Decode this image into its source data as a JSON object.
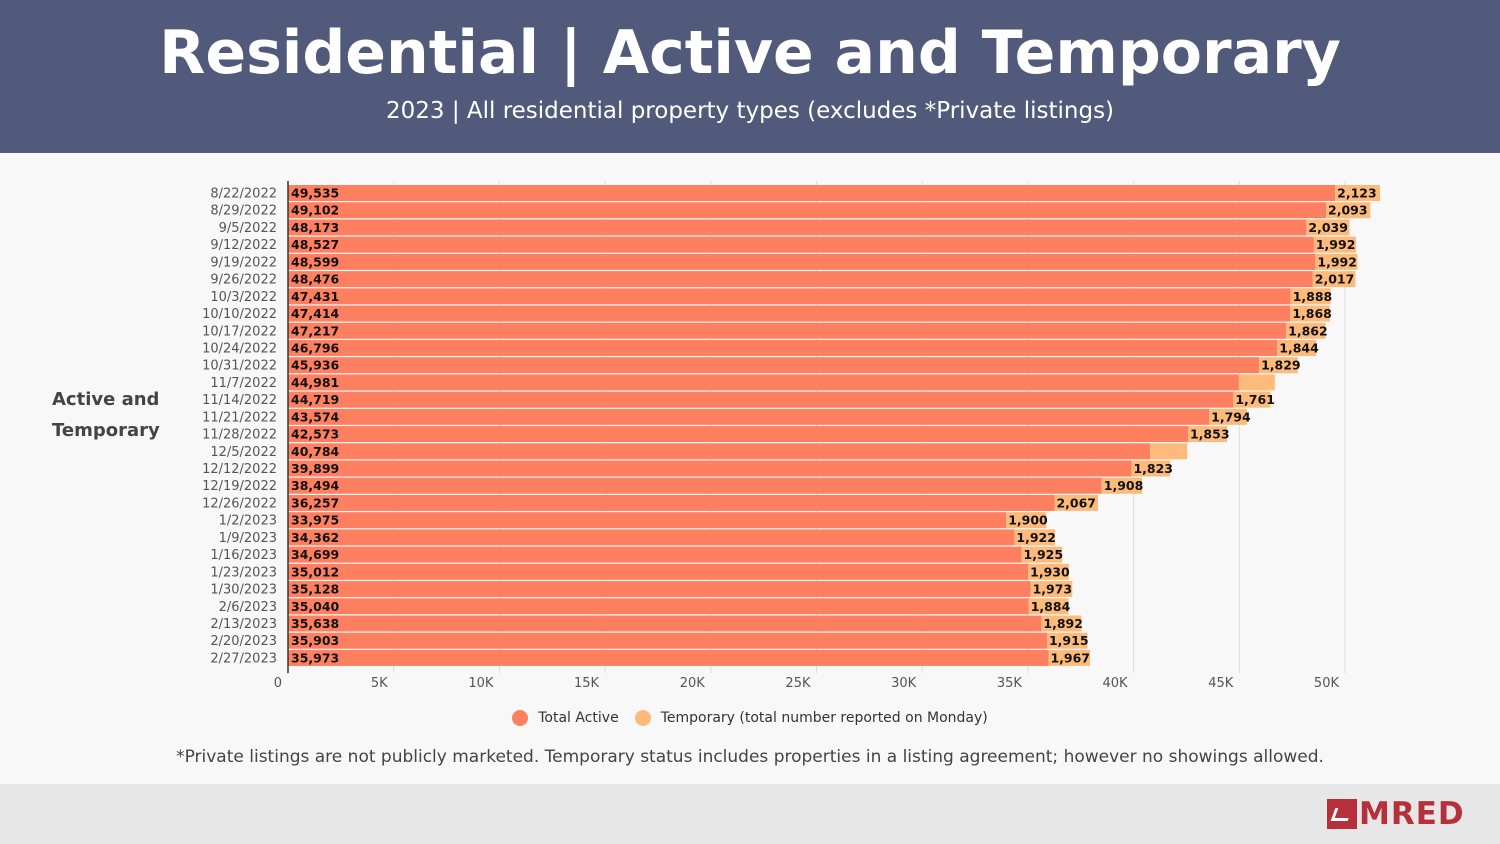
{
  "header": {
    "title": "Residential | Active and Temporary",
    "subtitle": "2023 | All residential property types (excludes *Private listings)"
  },
  "side_label": "Active and Temporary",
  "legend": {
    "total_active": "Total Active",
    "temporary": "Temporary (total number reported on Monday)"
  },
  "footnote": "*Private listings are not publicly marketed. Temporary status includes properties in a listing agreement; however no showings allowed.",
  "logo": {
    "text": "MRED",
    "icon": "mred-logo-icon"
  },
  "colors": {
    "header_bg": "#525a7c",
    "total_active": "#ff7f61",
    "temporary": "#fdbb7b",
    "brand": "#b5303a"
  },
  "chart_data": {
    "type": "bar",
    "orientation": "horizontal",
    "stacked": true,
    "categories": [
      "8/22/2022",
      "8/29/2022",
      "9/5/2022",
      "9/12/2022",
      "9/19/2022",
      "9/26/2022",
      "10/3/2022",
      "10/10/2022",
      "10/17/2022",
      "10/24/2022",
      "10/31/2022",
      "11/7/2022",
      "11/14/2022",
      "11/21/2022",
      "11/28/2022",
      "12/5/2022",
      "12/12/2022",
      "12/19/2022",
      "12/26/2022",
      "1/2/2023",
      "1/9/2023",
      "1/16/2023",
      "1/23/2023",
      "1/30/2023",
      "2/6/2023",
      "2/13/2023",
      "2/20/2023",
      "2/27/2023"
    ],
    "series": [
      {
        "name": "Total Active",
        "values": [
          49535,
          49102,
          48173,
          48527,
          48599,
          48476,
          47431,
          47414,
          47217,
          46796,
          45936,
          44981,
          44719,
          43574,
          42573,
          40784,
          39899,
          38494,
          36257,
          33975,
          34362,
          34699,
          35012,
          35128,
          35040,
          35638,
          35903,
          35973
        ]
      },
      {
        "name": "Temporary (total number reported on Monday)",
        "values": [
          2123,
          2093,
          2039,
          1992,
          1992,
          2017,
          1888,
          1868,
          1862,
          1844,
          1829,
          1700,
          1761,
          1794,
          1853,
          1750,
          1823,
          1908,
          2067,
          1900,
          1922,
          1925,
          1930,
          1973,
          1884,
          1892,
          1915,
          1967
        ],
        "labels": [
          "2,123",
          "2,093",
          "2,039",
          "1,992",
          "1,992",
          "2,017",
          "1,888",
          "1,868",
          "1,862",
          "1,844",
          "1,829",
          "",
          "1,761",
          "1,794",
          "1,853",
          "",
          "1,823",
          "1,908",
          "2,067",
          "1,900",
          "1,922",
          "1,925",
          "1,930",
          "1,973",
          "1,884",
          "1,892",
          "1,915",
          "1,967"
        ]
      }
    ],
    "active_labels": [
      "49,535",
      "49,102",
      "48,173",
      "48,527",
      "48,599",
      "48,476",
      "47,431",
      "47,414",
      "47,217",
      "46,796",
      "45,936",
      "44,981",
      "44,719",
      "43,574",
      "42,573",
      "40,784",
      "39,899",
      "38,494",
      "36,257",
      "33,975",
      "34,362",
      "34,699",
      "35,012",
      "35,128",
      "35,040",
      "35,638",
      "35,903",
      "35,973"
    ],
    "x_ticks": [
      "0",
      "5K",
      "10K",
      "15K",
      "20K",
      "25K",
      "30K",
      "35K",
      "40K",
      "45K",
      "50K"
    ],
    "xlim": [
      0,
      52500
    ],
    "grid": true,
    "legend_position": "bottom"
  }
}
